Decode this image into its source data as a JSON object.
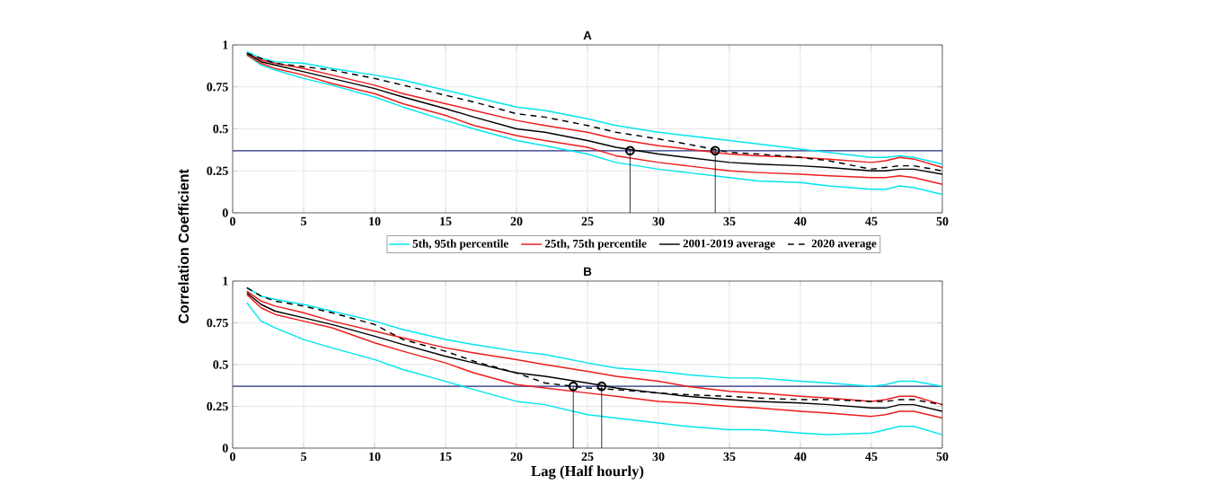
{
  "chart_data": [
    {
      "type": "line",
      "title": "A",
      "ylabel": "Correlation Coefficient",
      "x": [
        1,
        2,
        3,
        5,
        7,
        10,
        12,
        15,
        17,
        20,
        22,
        25,
        27,
        30,
        32,
        35,
        37,
        40,
        42,
        45,
        46,
        47,
        48,
        50
      ],
      "xlim": [
        0,
        50
      ],
      "ylim": [
        0,
        1
      ],
      "xticks": [
        0,
        5,
        10,
        15,
        20,
        25,
        30,
        35,
        40,
        45,
        50
      ],
      "yticks": [
        0,
        0.25,
        0.5,
        0.75,
        1
      ],
      "grid": true,
      "legend": "bottom",
      "series": [
        {
          "name": "5th, 95th percentile",
          "color": "#00e5ee",
          "values": [
            0.94,
            0.88,
            0.85,
            0.8,
            0.76,
            0.69,
            0.63,
            0.55,
            0.5,
            0.43,
            0.4,
            0.35,
            0.3,
            0.26,
            0.24,
            0.21,
            0.19,
            0.18,
            0.16,
            0.14,
            0.14,
            0.16,
            0.15,
            0.11
          ]
        },
        {
          "color": "#00e5ee",
          "values": [
            0.96,
            0.92,
            0.9,
            0.89,
            0.86,
            0.82,
            0.79,
            0.73,
            0.69,
            0.63,
            0.61,
            0.56,
            0.52,
            0.48,
            0.46,
            0.43,
            0.41,
            0.38,
            0.36,
            0.33,
            0.33,
            0.34,
            0.33,
            0.29
          ]
        },
        {
          "name": "25th, 75th percentile",
          "color": "#ee1c1c",
          "values": [
            0.94,
            0.89,
            0.86,
            0.82,
            0.77,
            0.71,
            0.65,
            0.58,
            0.52,
            0.46,
            0.43,
            0.39,
            0.34,
            0.3,
            0.28,
            0.25,
            0.24,
            0.23,
            0.22,
            0.21,
            0.21,
            0.22,
            0.21,
            0.17
          ]
        },
        {
          "color": "#ee1c1c",
          "values": [
            0.95,
            0.91,
            0.89,
            0.86,
            0.82,
            0.76,
            0.71,
            0.65,
            0.61,
            0.55,
            0.52,
            0.48,
            0.44,
            0.4,
            0.38,
            0.35,
            0.34,
            0.33,
            0.32,
            0.3,
            0.31,
            0.33,
            0.32,
            0.27
          ]
        },
        {
          "name": "2001-2019 average",
          "color": "#000000",
          "values": [
            0.95,
            0.9,
            0.88,
            0.84,
            0.8,
            0.74,
            0.69,
            0.62,
            0.57,
            0.5,
            0.48,
            0.43,
            0.39,
            0.35,
            0.33,
            0.3,
            0.29,
            0.28,
            0.27,
            0.25,
            0.25,
            0.26,
            0.26,
            0.23
          ]
        },
        {
          "name": "2020 average",
          "color": "#000000",
          "line_style": "dashed",
          "values": [
            0.95,
            0.92,
            0.89,
            0.87,
            0.85,
            0.8,
            0.76,
            0.7,
            0.66,
            0.59,
            0.57,
            0.52,
            0.48,
            0.44,
            0.41,
            0.36,
            0.35,
            0.33,
            0.31,
            0.26,
            0.27,
            0.28,
            0.28,
            0.25
          ]
        },
        {
          "type": "lollipop",
          "color": "#000000",
          "marker": "circle",
          "x": [
            28,
            34
          ],
          "values": [
            0.37,
            0.37
          ]
        }
      ],
      "ref_lines": [
        {
          "axis": "y",
          "value": 0.37,
          "color": "#1f2a80"
        }
      ]
    },
    {
      "type": "line",
      "title": "B",
      "xlabel": "Lag (Half hourly)",
      "x": [
        1,
        2,
        3,
        5,
        7,
        10,
        12,
        15,
        17,
        20,
        22,
        25,
        27,
        30,
        32,
        35,
        37,
        40,
        42,
        45,
        46,
        47,
        48,
        50
      ],
      "xlim": [
        0,
        50
      ],
      "ylim": [
        0,
        1
      ],
      "xticks": [
        0,
        5,
        10,
        15,
        20,
        25,
        30,
        35,
        40,
        45,
        50
      ],
      "yticks": [
        0,
        0.25,
        0.5,
        0.75,
        1
      ],
      "grid": true,
      "series": [
        {
          "color": "#00e5ee",
          "values": [
            0.87,
            0.76,
            0.72,
            0.65,
            0.6,
            0.53,
            0.47,
            0.4,
            0.35,
            0.28,
            0.26,
            0.2,
            0.18,
            0.15,
            0.13,
            0.11,
            0.11,
            0.09,
            0.08,
            0.09,
            0.11,
            0.13,
            0.13,
            0.08
          ]
        },
        {
          "color": "#00e5ee",
          "values": [
            0.96,
            0.91,
            0.89,
            0.86,
            0.82,
            0.76,
            0.71,
            0.65,
            0.62,
            0.58,
            0.56,
            0.51,
            0.48,
            0.46,
            0.44,
            0.42,
            0.42,
            0.4,
            0.39,
            0.37,
            0.38,
            0.4,
            0.4,
            0.37
          ]
        },
        {
          "color": "#ee1c1c",
          "values": [
            0.92,
            0.84,
            0.8,
            0.76,
            0.72,
            0.63,
            0.58,
            0.51,
            0.45,
            0.38,
            0.36,
            0.33,
            0.31,
            0.28,
            0.27,
            0.25,
            0.24,
            0.22,
            0.21,
            0.19,
            0.2,
            0.22,
            0.22,
            0.18
          ]
        },
        {
          "color": "#ee1c1c",
          "values": [
            0.94,
            0.88,
            0.85,
            0.81,
            0.76,
            0.7,
            0.66,
            0.6,
            0.57,
            0.53,
            0.5,
            0.46,
            0.43,
            0.4,
            0.37,
            0.34,
            0.33,
            0.31,
            0.3,
            0.28,
            0.29,
            0.31,
            0.31,
            0.26
          ]
        },
        {
          "color": "#000000",
          "values": [
            0.93,
            0.86,
            0.82,
            0.78,
            0.74,
            0.67,
            0.62,
            0.55,
            0.51,
            0.45,
            0.43,
            0.39,
            0.36,
            0.33,
            0.31,
            0.29,
            0.28,
            0.27,
            0.26,
            0.24,
            0.24,
            0.26,
            0.26,
            0.22
          ]
        },
        {
          "color": "#000000",
          "line_style": "dashed",
          "values": [
            0.96,
            0.91,
            0.88,
            0.85,
            0.81,
            0.74,
            0.65,
            0.58,
            0.52,
            0.45,
            0.39,
            0.36,
            0.35,
            0.33,
            0.32,
            0.31,
            0.3,
            0.29,
            0.29,
            0.28,
            0.28,
            0.29,
            0.29,
            0.26
          ]
        },
        {
          "type": "lollipop",
          "color": "#000000",
          "marker": "circle",
          "x": [
            24,
            26
          ],
          "values": [
            0.37,
            0.37
          ]
        }
      ],
      "ref_lines": [
        {
          "axis": "y",
          "value": 0.37,
          "color": "#1f2a80"
        }
      ]
    }
  ]
}
